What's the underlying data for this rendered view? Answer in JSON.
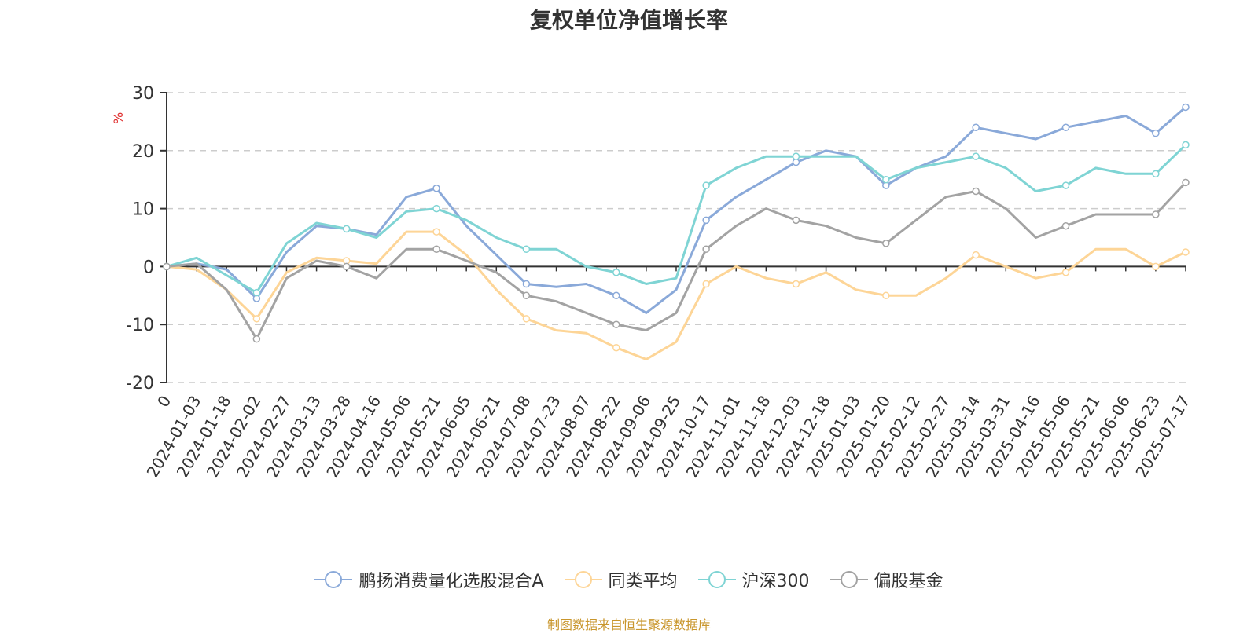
{
  "chart_data": {
    "type": "line",
    "title": "复权单位净值增长率",
    "ylabel": "%",
    "ylim": [
      -20,
      30
    ],
    "yticks": [
      -20,
      -10,
      0,
      10,
      20,
      30
    ],
    "grid": true,
    "legend_position": "bottom-center",
    "x_categories": [
      "0",
      "2024-01-03",
      "2024-01-18",
      "2024-02-02",
      "2024-02-27",
      "2024-03-13",
      "2024-03-28",
      "2024-04-16",
      "2024-05-06",
      "2024-05-21",
      "2024-06-05",
      "2024-06-21",
      "2024-07-08",
      "2024-07-23",
      "2024-08-07",
      "2024-08-22",
      "2024-09-06",
      "2024-09-25",
      "2024-10-17",
      "2024-11-01",
      "2024-11-18",
      "2024-12-03",
      "2024-12-18",
      "2025-01-03",
      "2025-01-20",
      "2025-02-12",
      "2025-02-27",
      "2025-03-14",
      "2025-03-31",
      "2025-04-16",
      "2025-05-06",
      "2025-05-21",
      "2025-06-06",
      "2025-06-23",
      "2025-07-17"
    ],
    "series": [
      {
        "name": "鹏扬消费量化选股混合A",
        "color": "#8aa9d9",
        "values": [
          0,
          0.5,
          -0.5,
          -5.5,
          2.5,
          7,
          6.5,
          5.5,
          12,
          13.5,
          7,
          2,
          -3,
          -3.5,
          -3,
          -5,
          -8,
          -4,
          8,
          12,
          15,
          18,
          20,
          19,
          14,
          17,
          19,
          24,
          23,
          22,
          24,
          25,
          26,
          23,
          27.5
        ]
      },
      {
        "name": "同类平均",
        "color": "#fdd597",
        "values": [
          0,
          -0.5,
          -4,
          -9,
          -1,
          1.5,
          1,
          0.5,
          6,
          6,
          2,
          -4,
          -9,
          -11,
          -11.5,
          -14,
          -16,
          -13,
          -3,
          0,
          -2,
          -3,
          -1,
          -4,
          -5,
          -5,
          -2,
          2,
          0,
          -2,
          -1,
          3,
          3,
          0,
          2.5
        ]
      },
      {
        "name": "沪深300",
        "color": "#7fd4d4",
        "values": [
          0,
          1.5,
          -1.5,
          -4.5,
          4,
          7.5,
          6.5,
          5,
          9.5,
          10,
          8,
          5,
          3,
          3,
          0,
          -1,
          -3,
          -2,
          14,
          17,
          19,
          19,
          19,
          19,
          15,
          17,
          18,
          19,
          17,
          13,
          14,
          17,
          16,
          16,
          21
        ]
      },
      {
        "name": "偏股基金",
        "color": "#a3a3a3",
        "values": [
          0,
          0.5,
          -4,
          -12.5,
          -2,
          1,
          0,
          -2,
          3,
          3,
          1,
          -1,
          -5,
          -6,
          -8,
          -10,
          -11,
          -8,
          3,
          7,
          10,
          8,
          7,
          5,
          4,
          8,
          12,
          13,
          10,
          5,
          7,
          9,
          9,
          9,
          14.5
        ]
      }
    ]
  },
  "source_note": "制图数据来自恒生聚源数据库"
}
